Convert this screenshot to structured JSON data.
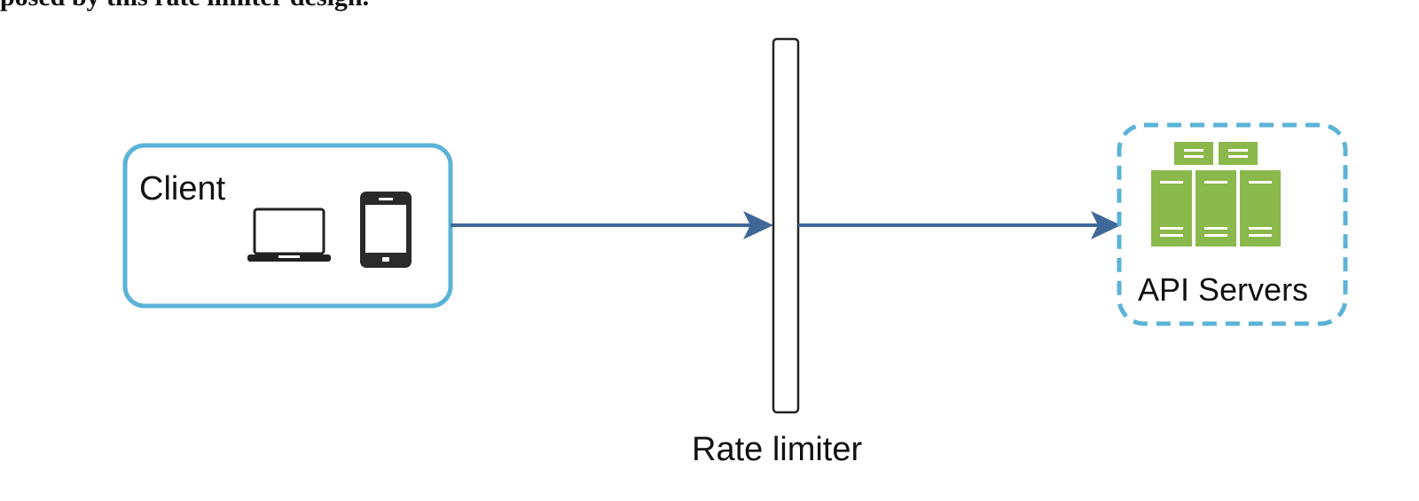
{
  "header": {
    "cut_text": "posed by this rate limiter design."
  },
  "client": {
    "label": "Client",
    "devices": [
      "laptop-icon",
      "tablet-icon"
    ],
    "border_color": "#5bb3d8"
  },
  "rate_limiter": {
    "label": "Rate limiter"
  },
  "api_servers": {
    "label": "API Servers",
    "icon": "server-cluster-icon",
    "border_color": "#5bb3d8",
    "server_color": "#8ab84b"
  },
  "arrows": {
    "color": "#3f6898"
  }
}
